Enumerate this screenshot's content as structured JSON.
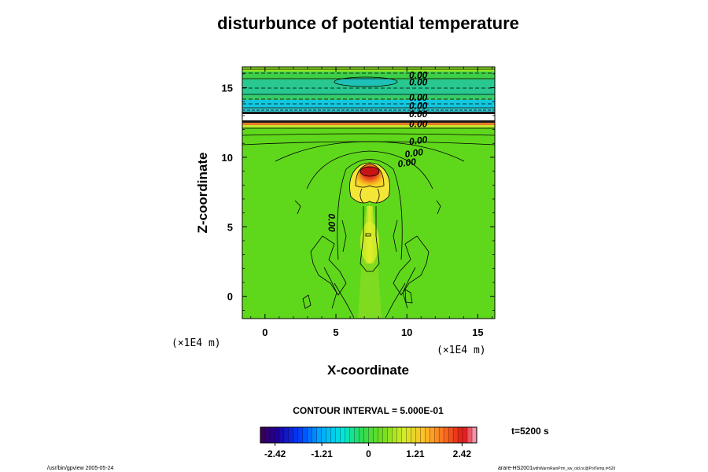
{
  "chart_data": {
    "type": "heatmap",
    "title": "disturbunce of potential temperature",
    "xlabel": "X-coordinate",
    "ylabel": "Z-coordinate",
    "x_unit": "(×1E4 m)",
    "z_unit": "(×1E4 m)",
    "xlim": [
      -1.6,
      16.2
    ],
    "ylim": [
      -1.6,
      16.5
    ],
    "x_ticks": [
      "0",
      "5",
      "10",
      "15"
    ],
    "y_ticks": [
      "0",
      "5",
      "10",
      "15"
    ],
    "x_tick_values": [
      0,
      5,
      10,
      15
    ],
    "y_tick_values": [
      0,
      5,
      10,
      15
    ],
    "contour_interval_text": "CONTOUR INTERVAL = 5.000E-01",
    "time_text": "t=5200 s",
    "colorbar": {
      "min": -2.8,
      "max": 2.8,
      "tick_labels": [
        "-2.42",
        "-1.21",
        "0",
        "1.21",
        "2.42"
      ],
      "tick_values": [
        -2.42,
        -1.21,
        0,
        1.21,
        2.42
      ]
    },
    "contour_labels": [
      {
        "text": "0.00",
        "x": 10.8,
        "z": 15.9
      },
      {
        "text": "0.00",
        "x": 10.8,
        "z": 15.4
      },
      {
        "text": "0.00",
        "x": 10.8,
        "z": 14.3
      },
      {
        "text": "0.00",
        "x": 10.8,
        "z": 13.7
      },
      {
        "text": "0.00",
        "x": 10.8,
        "z": 13.1
      },
      {
        "text": "0.00",
        "x": 10.8,
        "z": 12.4
      },
      {
        "text": "0.00",
        "x": 10.8,
        "z": 11.2
      },
      {
        "text": "0.00",
        "x": 10.5,
        "z": 10.3
      },
      {
        "text": "0.00",
        "x": 10.0,
        "z": 9.6
      },
      {
        "text": "0.00",
        "x": 4.7,
        "z": 5.3
      }
    ],
    "thermal": {
      "center_x": 7.1,
      "top_z": 9.1,
      "peak_value": 2.4
    }
  },
  "footer": {
    "left": "/usr/bin/gpview 2005-05-24",
    "right_main": "arare-HS2001",
    "right_sub": "withWarmRainPrm_sw_old.nc@PotTemp,t=520"
  }
}
